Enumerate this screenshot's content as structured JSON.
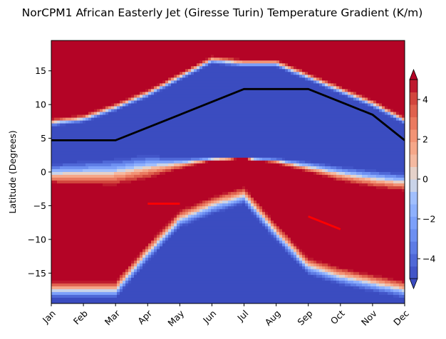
{
  "chart_data": {
    "type": "heatmap",
    "subtype": "filled-contour",
    "title": "NorCPM1 African Easterly Jet (Giresse Turin) Temperature Gradient (K/m)",
    "xlabel": "",
    "ylabel": "Latitude (Degrees)",
    "x": [
      "Jan",
      "Feb",
      "Mar",
      "Apr",
      "May",
      "Jun",
      "Jul",
      "Aug",
      "Sep",
      "Oct",
      "Nov",
      "Dec"
    ],
    "xlim": [
      "Jan",
      "Dec"
    ],
    "ylim": [
      -19.5,
      19.5
    ],
    "yticks": [
      -15,
      -10,
      -5,
      0,
      5,
      10,
      15
    ],
    "colorbar": {
      "colormap": "coolwarm",
      "range": [
        -5,
        5
      ],
      "ticks": [
        -4,
        -2,
        0,
        2,
        4
      ],
      "extend": "both",
      "levels": [
        -5,
        -4.375,
        -3.75,
        -3.125,
        -2.5,
        -1.875,
        -1.25,
        -0.625,
        0,
        0.625,
        1.25,
        1.875,
        2.5,
        3.125,
        3.75,
        4.375,
        5
      ]
    },
    "series": [
      {
        "color": "#000000",
        "x": [
          "Jan",
          "Feb",
          "Mar",
          "Apr",
          "May",
          "Jun",
          "Jul",
          "Aug",
          "Sep",
          "Oct",
          "Nov",
          "Dec"
        ],
        "y": [
          4.7,
          4.7,
          4.7,
          6.6,
          8.5,
          10.4,
          12.3,
          12.3,
          12.3,
          10.4,
          8.5,
          4.7
        ]
      },
      {
        "color": "#ff0000",
        "segments": [
          {
            "x": [
              "Apr",
              "May"
            ],
            "y": [
              -4.7,
              -4.7
            ]
          },
          {
            "x": [
              "Sep",
              "Oct"
            ],
            "y": [
              -6.6,
              -8.5
            ]
          }
        ]
      }
    ],
    "field_summary": {
      "north_red_band_lower_edge": [
        8.2,
        8.8,
        10.5,
        12.5,
        15.0,
        17.5,
        17.0,
        17.0,
        15.0,
        13.0,
        11.0,
        8.5
      ],
      "northern_blue_lower_edge": [
        0.5,
        1.0,
        1.5,
        2.0,
        1.0,
        0.8,
        0.5,
        0.8,
        0.5,
        0.0,
        -0.5,
        -1.0
      ],
      "south_red_upper_edge": [
        -2.5,
        -2.8,
        -3.0,
        -2.0,
        0.0,
        1.5,
        2.0,
        1.0,
        -0.5,
        -2.0,
        -3.0,
        -3.5
      ],
      "southern_blue_upper_edge": [
        -19.5,
        -19.5,
        -19.5,
        -14.0,
        -9.0,
        -7.0,
        -5.5,
        -11.0,
        -16.0,
        -17.5,
        -18.5,
        -19.5
      ]
    }
  }
}
